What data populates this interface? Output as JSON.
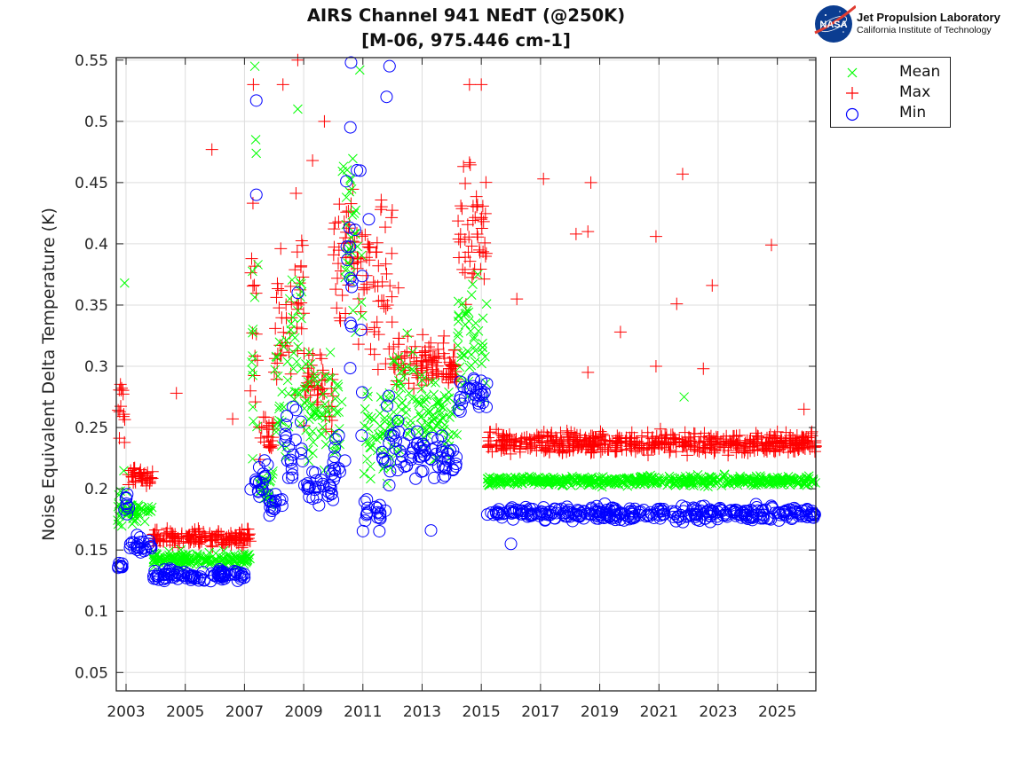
{
  "header": {
    "title_line1": "AIRS Channel 941 NEdT (@250K)",
    "title_line2": "[M-06, 975.446 cm-1]",
    "logo_org": "Jet Propulsion Laboratory",
    "logo_inst": "California Institute of Technology",
    "logo_badge": "NASA"
  },
  "colors": {
    "mean": "#00ff00",
    "max": "#ff0000",
    "min": "#0000ff",
    "grid": "#dddddd",
    "axis": "#222222"
  },
  "chart_data": {
    "type": "scatter",
    "title": "AIRS Channel 941 NEdT (@250K) [M-06, 975.446 cm-1]",
    "xlabel": "",
    "ylabel": "Noise Equivalent Delta Temperature (K)",
    "xlim": [
      2002.67,
      2026.3
    ],
    "ylim": [
      0.035,
      0.552
    ],
    "xticks": [
      2003,
      2005,
      2007,
      2009,
      2011,
      2013,
      2015,
      2017,
      2019,
      2021,
      2023,
      2025
    ],
    "xtick_labels": [
      "2003",
      "2005",
      "2007",
      "2009",
      "2011",
      "2013",
      "2015",
      "2017",
      "2019",
      "2021",
      "2023",
      "2025"
    ],
    "yticks": [
      0.05,
      0.1,
      0.15,
      0.2,
      0.25,
      0.3,
      0.35,
      0.4,
      0.45,
      0.5,
      0.55
    ],
    "ytick_labels": [
      "0.05",
      "0.1",
      "0.15",
      "0.2",
      "0.25",
      "0.3",
      "0.35",
      "0.4",
      "0.45",
      "0.5",
      "0.55"
    ],
    "grid": true,
    "legend": {
      "placement": "outside-top-right",
      "entries": [
        "Mean",
        "Max",
        "Min"
      ]
    },
    "series": [
      {
        "name": "Mean",
        "marker": "x",
        "segments": [
          {
            "t0": 2002.7,
            "t1": 2003.0,
            "lo": 0.155,
            "hi": 0.23
          },
          {
            "t0": 2003.0,
            "t1": 2003.9,
            "lo": 0.17,
            "hi": 0.19
          },
          {
            "t0": 2003.9,
            "t1": 2007.2,
            "lo": 0.135,
            "hi": 0.15
          },
          {
            "t0": 2007.2,
            "t1": 2007.5,
            "lo": 0.18,
            "hi": 0.5
          },
          {
            "t0": 2007.5,
            "t1": 2008.0,
            "lo": 0.18,
            "hi": 0.22
          },
          {
            "t0": 2008.0,
            "t1": 2008.5,
            "lo": 0.21,
            "hi": 0.37
          },
          {
            "t0": 2008.5,
            "t1": 2009.0,
            "lo": 0.22,
            "hi": 0.42
          },
          {
            "t0": 2009.0,
            "t1": 2010.3,
            "lo": 0.2,
            "hi": 0.33
          },
          {
            "t0": 2010.3,
            "t1": 2011.0,
            "lo": 0.24,
            "hi": 0.55
          },
          {
            "t0": 2011.0,
            "t1": 2012.0,
            "lo": 0.18,
            "hi": 0.3
          },
          {
            "t0": 2012.0,
            "t1": 2013.0,
            "lo": 0.22,
            "hi": 0.33
          },
          {
            "t0": 2013.0,
            "t1": 2014.2,
            "lo": 0.21,
            "hi": 0.3
          },
          {
            "t0": 2014.2,
            "t1": 2015.2,
            "lo": 0.26,
            "hi": 0.38
          },
          {
            "t0": 2015.2,
            "t1": 2026.3,
            "lo": 0.201,
            "hi": 0.212
          }
        ],
        "outliers": [
          [
            2002.95,
            0.368
          ],
          [
            2007.35,
            0.545
          ],
          [
            2007.38,
            0.485
          ],
          [
            2008.8,
            0.51
          ],
          [
            2021.85,
            0.275
          ]
        ]
      },
      {
        "name": "Max",
        "marker": "+",
        "segments": [
          {
            "t0": 2002.7,
            "t1": 2003.0,
            "lo": 0.22,
            "hi": 0.31
          },
          {
            "t0": 2003.0,
            "t1": 2003.9,
            "lo": 0.2,
            "hi": 0.22
          },
          {
            "t0": 2003.9,
            "t1": 2007.2,
            "lo": 0.15,
            "hi": 0.17
          },
          {
            "t0": 2007.2,
            "t1": 2007.5,
            "lo": 0.22,
            "hi": 0.45
          },
          {
            "t0": 2007.5,
            "t1": 2008.0,
            "lo": 0.22,
            "hi": 0.27
          },
          {
            "t0": 2008.0,
            "t1": 2008.6,
            "lo": 0.24,
            "hi": 0.44
          },
          {
            "t0": 2008.6,
            "t1": 2009.0,
            "lo": 0.25,
            "hi": 0.45
          },
          {
            "t0": 2009.0,
            "t1": 2010.0,
            "lo": 0.24,
            "hi": 0.33
          },
          {
            "t0": 2010.0,
            "t1": 2010.7,
            "lo": 0.3,
            "hi": 0.48
          },
          {
            "t0": 2010.7,
            "t1": 2012.0,
            "lo": 0.28,
            "hi": 0.47
          },
          {
            "t0": 2012.0,
            "t1": 2014.2,
            "lo": 0.27,
            "hi": 0.33
          },
          {
            "t0": 2014.2,
            "t1": 2015.2,
            "lo": 0.33,
            "hi": 0.48
          },
          {
            "t0": 2015.2,
            "t1": 2026.3,
            "lo": 0.225,
            "hi": 0.25
          }
        ],
        "outliers": [
          [
            2005.9,
            0.477
          ],
          [
            2004.7,
            0.278
          ],
          [
            2006.6,
            0.257
          ],
          [
            2007.3,
            0.53
          ],
          [
            2008.3,
            0.53
          ],
          [
            2008.8,
            0.55
          ],
          [
            2009.7,
            0.5
          ],
          [
            2009.3,
            0.468
          ],
          [
            2012.2,
            0.364
          ],
          [
            2014.6,
            0.53
          ],
          [
            2015.0,
            0.53
          ],
          [
            2016.2,
            0.355
          ],
          [
            2017.1,
            0.453
          ],
          [
            2018.7,
            0.45
          ],
          [
            2018.2,
            0.408
          ],
          [
            2018.6,
            0.41
          ],
          [
            2019.7,
            0.328
          ],
          [
            2020.9,
            0.406
          ],
          [
            2020.9,
            0.3
          ],
          [
            2021.8,
            0.457
          ],
          [
            2021.6,
            0.351
          ],
          [
            2022.8,
            0.366
          ],
          [
            2022.5,
            0.298
          ],
          [
            2024.8,
            0.399
          ],
          [
            2018.6,
            0.295
          ],
          [
            2025.9,
            0.265
          ]
        ]
      },
      {
        "name": "Min",
        "marker": "o",
        "segments": [
          {
            "t0": 2002.7,
            "t1": 2002.9,
            "lo": 0.13,
            "hi": 0.145
          },
          {
            "t0": 2002.9,
            "t1": 2003.1,
            "lo": 0.175,
            "hi": 0.2
          },
          {
            "t0": 2003.1,
            "t1": 2003.9,
            "lo": 0.145,
            "hi": 0.165
          },
          {
            "t0": 2003.9,
            "t1": 2007.2,
            "lo": 0.122,
            "hi": 0.137
          },
          {
            "t0": 2007.2,
            "t1": 2007.8,
            "lo": 0.18,
            "hi": 0.23
          },
          {
            "t0": 2007.8,
            "t1": 2008.3,
            "lo": 0.175,
            "hi": 0.2
          },
          {
            "t0": 2008.3,
            "t1": 2009.0,
            "lo": 0.175,
            "hi": 0.3
          },
          {
            "t0": 2009.0,
            "t1": 2010.0,
            "lo": 0.175,
            "hi": 0.23
          },
          {
            "t0": 2010.0,
            "t1": 2010.4,
            "lo": 0.19,
            "hi": 0.25
          },
          {
            "t0": 2010.4,
            "t1": 2011.0,
            "lo": 0.17,
            "hi": 0.55
          },
          {
            "t0": 2011.0,
            "t1": 2011.6,
            "lo": 0.16,
            "hi": 0.2
          },
          {
            "t0": 2011.6,
            "t1": 2012.0,
            "lo": 0.16,
            "hi": 0.3
          },
          {
            "t0": 2012.0,
            "t1": 2013.0,
            "lo": 0.2,
            "hi": 0.26
          },
          {
            "t0": 2013.0,
            "t1": 2014.2,
            "lo": 0.2,
            "hi": 0.25
          },
          {
            "t0": 2014.2,
            "t1": 2015.2,
            "lo": 0.255,
            "hi": 0.3
          },
          {
            "t0": 2015.2,
            "t1": 2026.3,
            "lo": 0.172,
            "hi": 0.188
          }
        ],
        "outliers": [
          [
            2007.4,
            0.517
          ],
          [
            2007.4,
            0.44
          ],
          [
            2010.6,
            0.548
          ],
          [
            2011.9,
            0.545
          ],
          [
            2011.8,
            0.52
          ],
          [
            2008.8,
            0.36
          ],
          [
            2013.3,
            0.166
          ],
          [
            2016.0,
            0.155
          ],
          [
            2010.8,
            0.46
          ],
          [
            2011.2,
            0.42
          ]
        ]
      }
    ]
  }
}
